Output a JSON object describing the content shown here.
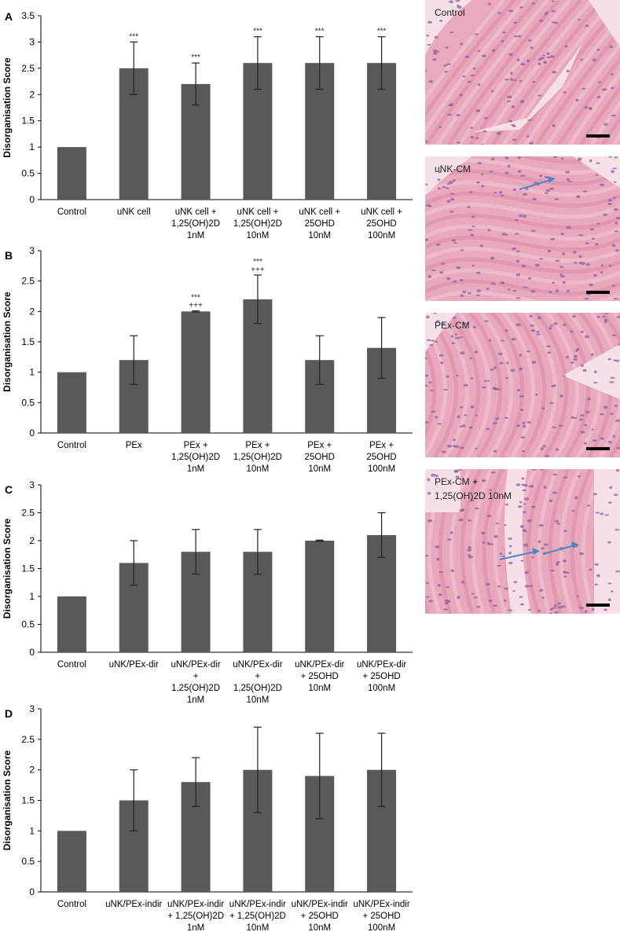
{
  "chart_data": [
    {
      "panel": "A",
      "type": "bar",
      "ylabel": "Disorganisation Score",
      "ylim": [
        0,
        3.5
      ],
      "yticks": [
        "0",
        "0.5",
        "1",
        "1.5",
        "2",
        "2.5",
        "3",
        "3.5"
      ],
      "categories": [
        [
          "Control"
        ],
        [
          "uNK cell"
        ],
        [
          "uNK cell +",
          "1,25(OH)2D",
          "1nM"
        ],
        [
          "uNK cell +",
          "1,25(OH)2D",
          "10nM"
        ],
        [
          "uNK cell +",
          "25OHD",
          "10nM"
        ],
        [
          "uNK cell +",
          "25OHD",
          "100nM"
        ]
      ],
      "values": [
        1,
        2.5,
        2.2,
        2.6,
        2.6,
        2.6
      ],
      "errors": [
        0,
        0.5,
        0.4,
        0.5,
        0.5,
        0.5
      ],
      "annotations": [
        [],
        [
          "***"
        ],
        [
          "***"
        ],
        [
          "***"
        ],
        [
          "***"
        ],
        [
          "***"
        ]
      ],
      "bar_color": "#595959",
      "grid": false
    },
    {
      "panel": "B",
      "type": "bar",
      "ylabel": "Disorganisation Score",
      "ylim": [
        0,
        3
      ],
      "yticks": [
        "0",
        "0.5",
        "1",
        "1.5",
        "2",
        "2.5",
        "3"
      ],
      "categories": [
        [
          "Control"
        ],
        [
          "PEx"
        ],
        [
          "PEx +",
          "1,25(OH)2D",
          "1nM"
        ],
        [
          "PEx +",
          "1,25(OH)2D",
          "10nM"
        ],
        [
          "PEx +",
          "25OHD",
          "10nM"
        ],
        [
          "PEx +",
          "25OHD",
          "100nM"
        ]
      ],
      "values": [
        1,
        1.2,
        2.0,
        2.2,
        1.2,
        1.4
      ],
      "errors": [
        0,
        0.4,
        0.01,
        0.4,
        0.4,
        0.5
      ],
      "annotations": [
        [],
        [],
        [
          "***",
          "+++"
        ],
        [
          "***",
          "+++"
        ],
        [],
        []
      ],
      "bar_color": "#595959",
      "grid": false
    },
    {
      "panel": "C",
      "type": "bar",
      "ylabel": "Disorganisation Score",
      "ylim": [
        0,
        3
      ],
      "yticks": [
        "0",
        "0.5",
        "1",
        "1.5",
        "2",
        "2.5",
        "3"
      ],
      "categories": [
        [
          "Control"
        ],
        [
          "uNK/PEx-dir"
        ],
        [
          "uNK/PEx-dir",
          "+",
          "1,25(OH)2D",
          "1nM"
        ],
        [
          "uNK/PEx-dir",
          "+",
          "1,25(OH)2D",
          "10nM"
        ],
        [
          "uNK/PEx-dir",
          "+ 25OHD",
          "10nM"
        ],
        [
          "uNK/PEx-dir",
          "+ 25OHD",
          "100nM"
        ]
      ],
      "values": [
        1,
        1.6,
        1.8,
        1.8,
        2.0,
        2.1
      ],
      "errors": [
        0,
        0.4,
        0.4,
        0.4,
        0.01,
        0.4
      ],
      "annotations": [
        [],
        [],
        [],
        [],
        [],
        []
      ],
      "bar_color": "#595959",
      "grid": false
    },
    {
      "panel": "D",
      "type": "bar",
      "ylabel": "Disorganisation Score",
      "ylim": [
        0,
        3
      ],
      "yticks": [
        "0",
        "0.5",
        "1",
        "1.5",
        "2",
        "2.5",
        "3"
      ],
      "categories": [
        [
          "Control"
        ],
        [
          "uNK/PEx-indir"
        ],
        [
          "uNK/PEx-indir",
          "+ 1,25(OH)2D",
          "1nM"
        ],
        [
          "uNK/PEx-indir",
          "+ 1,25(OH)2D",
          "10nM"
        ],
        [
          "uNK/PEx-indir",
          "+ 25OHD",
          "10nM"
        ],
        [
          "uNK/PEx-indir",
          "+ 25OHD",
          "100nM"
        ]
      ],
      "values": [
        1,
        1.5,
        1.8,
        2.0,
        1.9,
        2.0
      ],
      "errors": [
        0,
        0.5,
        0.4,
        0.7,
        0.7,
        0.6
      ],
      "annotations": [
        [],
        [],
        [],
        [],
        [],
        []
      ],
      "bar_color": "#595959",
      "grid": false
    }
  ],
  "micrographs": [
    {
      "label": "Control",
      "arrows": 0,
      "tissue": "homogeneous"
    },
    {
      "label": "uNK-CM",
      "arrows": 1,
      "tissue": "wavy"
    },
    {
      "label": "PEx-CM",
      "arrows": 0,
      "tissue": "fibrous"
    },
    {
      "label": "PEx-CM +",
      "label2": "1,25(OH)2D 10nM",
      "arrows": 2,
      "tissue": "split"
    }
  ],
  "colors": {
    "bar": "#595959",
    "tissue_base": "#e9a9bd",
    "tissue_light": "#f6dfe6",
    "nucleus": "#8a5d9a",
    "arrow": "#4f86c6",
    "scale_bar": "#000000"
  }
}
